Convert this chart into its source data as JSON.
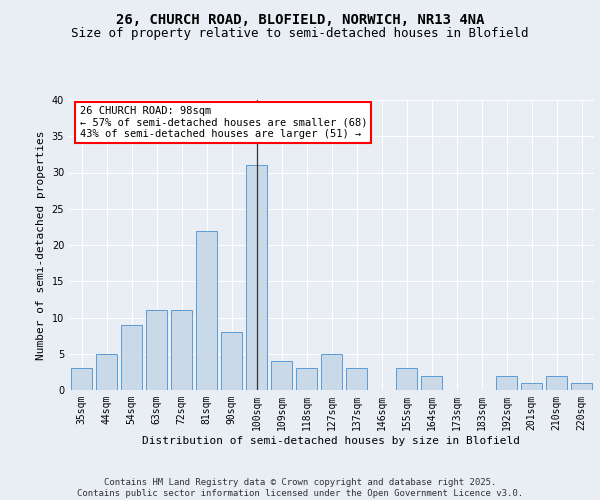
{
  "title1": "26, CHURCH ROAD, BLOFIELD, NORWICH, NR13 4NA",
  "title2": "Size of property relative to semi-detached houses in Blofield",
  "xlabel": "Distribution of semi-detached houses by size in Blofield",
  "ylabel": "Number of semi-detached properties",
  "categories": [
    "35sqm",
    "44sqm",
    "54sqm",
    "63sqm",
    "72sqm",
    "81sqm",
    "90sqm",
    "100sqm",
    "109sqm",
    "118sqm",
    "127sqm",
    "137sqm",
    "146sqm",
    "155sqm",
    "164sqm",
    "173sqm",
    "183sqm",
    "192sqm",
    "201sqm",
    "210sqm",
    "220sqm"
  ],
  "values": [
    3,
    5,
    9,
    11,
    11,
    22,
    8,
    31,
    4,
    3,
    5,
    3,
    0,
    3,
    2,
    0,
    0,
    2,
    1,
    2,
    1
  ],
  "bar_color": "#c9d9e8",
  "bar_edge_color": "#5b9bd5",
  "highlight_index": 7,
  "highlight_line_color": "#333333",
  "annotation_text": "26 CHURCH ROAD: 98sqm\n← 57% of semi-detached houses are smaller (68)\n43% of semi-detached houses are larger (51) →",
  "annotation_box_color": "white",
  "annotation_box_edge": "red",
  "ylim": [
    0,
    40
  ],
  "yticks": [
    0,
    5,
    10,
    15,
    20,
    25,
    30,
    35,
    40
  ],
  "background_color": "#e8eef4",
  "plot_bg_color": "#e8eef4",
  "footer_text": "Contains HM Land Registry data © Crown copyright and database right 2025.\nContains public sector information licensed under the Open Government Licence v3.0.",
  "title1_fontsize": 10,
  "title2_fontsize": 9,
  "xlabel_fontsize": 8,
  "ylabel_fontsize": 8,
  "tick_fontsize": 7,
  "annotation_fontsize": 7.5,
  "footer_fontsize": 6.5
}
